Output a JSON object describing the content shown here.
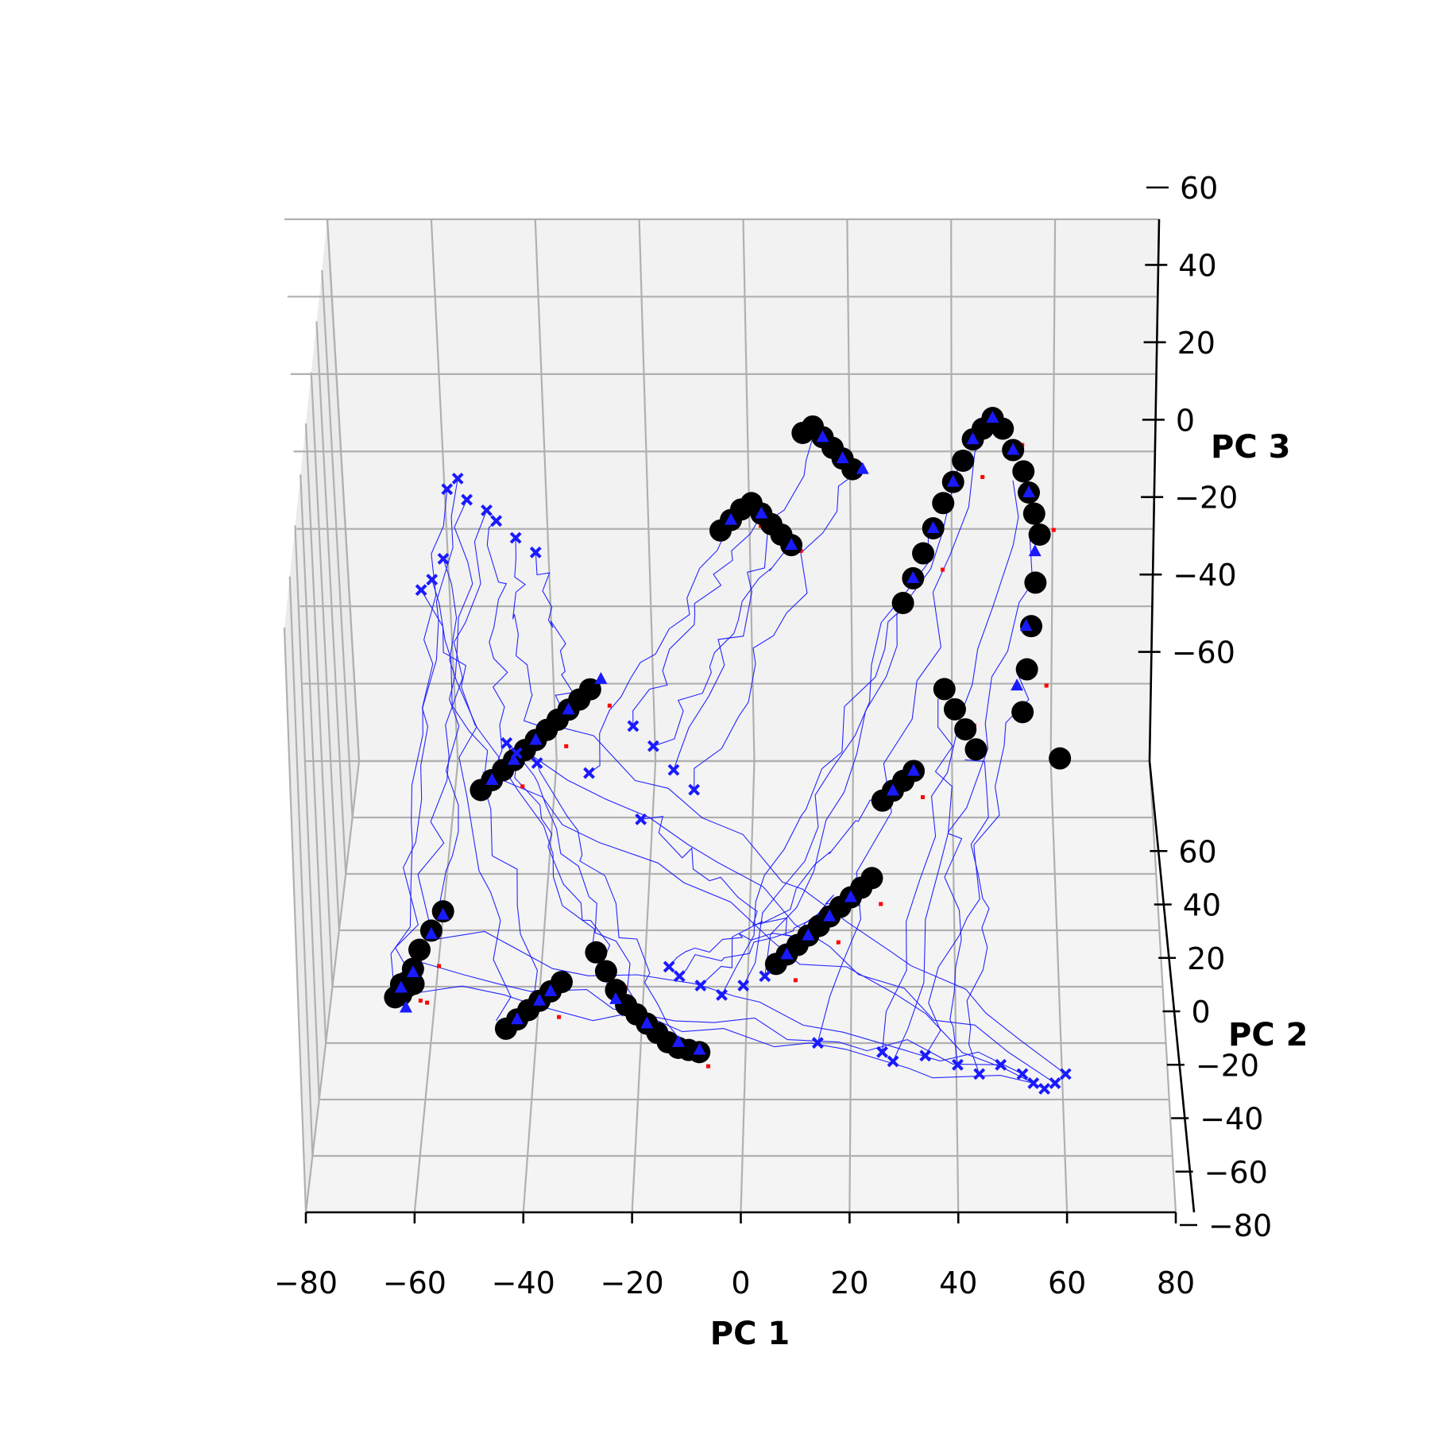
{
  "chart_data": {
    "type": "scatter",
    "projection": "3d",
    "title": "",
    "xlabel": "PC 1",
    "ylabel": "PC 2",
    "zlabel": "PC 3",
    "xlim": [
      -80,
      80
    ],
    "ylim": [
      -80,
      80
    ],
    "zlim": [
      -80,
      60
    ],
    "x_ticks": [
      "−80",
      "−60",
      "−40",
      "−20",
      "0",
      "20",
      "40",
      "60",
      "80"
    ],
    "y_ticks": [
      "−80",
      "−60",
      "−40",
      "−20",
      "0",
      "20",
      "40",
      "60"
    ],
    "z_ticks": [
      "−60",
      "−40",
      "−20",
      "0",
      "20",
      "40",
      "60"
    ],
    "grid": true,
    "colors": {
      "trajectory": "#1a1aff",
      "cross_marker": "#1a1aff",
      "triangle_marker": "#1a1aff",
      "circle_marker": "#000000",
      "dotted_segment": "#ff0000",
      "pane": "#f2f2f2",
      "gridline": "#b0b0b0"
    },
    "series": [
      {
        "marker": "circle",
        "color": "#000000",
        "points": [
          [
            -63,
            -70,
            -20
          ],
          [
            -62,
            -68,
            -22
          ],
          [
            -61,
            -66,
            -18
          ],
          [
            -64,
            -72,
            -24
          ],
          [
            -60,
            -62,
            -14
          ],
          [
            -58,
            -58,
            -10
          ],
          [
            -56,
            -54,
            -6
          ],
          [
            -63,
            -70,
            -26
          ],
          [
            -62,
            -66,
            -28
          ],
          [
            -61,
            -64,
            -30
          ],
          [
            -50,
            -30,
            20
          ],
          [
            -48,
            -28,
            22
          ],
          [
            -46,
            -26,
            24
          ],
          [
            -44,
            -24,
            26
          ],
          [
            -42,
            -22,
            28
          ],
          [
            -40,
            -20,
            30
          ],
          [
            -38,
            -18,
            32
          ],
          [
            -36,
            -16,
            34
          ],
          [
            -34,
            -14,
            36
          ],
          [
            -32,
            -12,
            38
          ],
          [
            -30,
            -10,
            40
          ],
          [
            -44,
            -60,
            -62
          ],
          [
            -42,
            -58,
            -60
          ],
          [
            -40,
            -56,
            -58
          ],
          [
            -38,
            -54,
            -56
          ],
          [
            -36,
            -52,
            -54
          ],
          [
            -34,
            -50,
            -52
          ],
          [
            -28,
            -36,
            -58
          ],
          [
            -26,
            -40,
            -62
          ],
          [
            -24,
            -44,
            -66
          ],
          [
            -22,
            -48,
            -68
          ],
          [
            -20,
            -50,
            -70
          ],
          [
            -18,
            -52,
            -72
          ],
          [
            -16,
            -54,
            -74
          ],
          [
            -14,
            -56,
            -76
          ],
          [
            -12,
            -58,
            -76
          ],
          [
            -10,
            -60,
            -74
          ],
          [
            -8,
            -62,
            -72
          ],
          [
            -6,
            40,
            40
          ],
          [
            -4,
            42,
            42
          ],
          [
            -2,
            44,
            44
          ],
          [
            0,
            46,
            44
          ],
          [
            2,
            44,
            42
          ],
          [
            4,
            42,
            40
          ],
          [
            6,
            40,
            38
          ],
          [
            8,
            38,
            36
          ],
          [
            10,
            60,
            56
          ],
          [
            12,
            62,
            56
          ],
          [
            14,
            60,
            54
          ],
          [
            16,
            58,
            52
          ],
          [
            18,
            56,
            50
          ],
          [
            20,
            54,
            48
          ],
          [
            6,
            -40,
            -58
          ],
          [
            8,
            -38,
            -56
          ],
          [
            10,
            -36,
            -54
          ],
          [
            12,
            -34,
            -52
          ],
          [
            14,
            -32,
            -50
          ],
          [
            16,
            -30,
            -48
          ],
          [
            18,
            -28,
            -46
          ],
          [
            20,
            -26,
            -44
          ],
          [
            22,
            -24,
            -42
          ],
          [
            24,
            -22,
            -40
          ],
          [
            26,
            -10,
            -18
          ],
          [
            28,
            -8,
            -16
          ],
          [
            30,
            -6,
            -14
          ],
          [
            32,
            -4,
            -12
          ],
          [
            30,
            30,
            20
          ],
          [
            32,
            34,
            26
          ],
          [
            34,
            38,
            32
          ],
          [
            36,
            42,
            38
          ],
          [
            38,
            46,
            44
          ],
          [
            40,
            50,
            48
          ],
          [
            42,
            54,
            52
          ],
          [
            44,
            58,
            56
          ],
          [
            46,
            60,
            58
          ],
          [
            48,
            62,
            60
          ],
          [
            50,
            60,
            58
          ],
          [
            52,
            56,
            54
          ],
          [
            54,
            52,
            50
          ],
          [
            55,
            48,
            46
          ],
          [
            56,
            44,
            42
          ],
          [
            57,
            40,
            38
          ],
          [
            56,
            30,
            30
          ],
          [
            55,
            20,
            24
          ],
          [
            54,
            10,
            18
          ],
          [
            53,
            0,
            12
          ],
          [
            60,
            -10,
            4
          ],
          [
            38,
            10,
            8
          ],
          [
            40,
            6,
            4
          ],
          [
            42,
            2,
            0
          ],
          [
            44,
            -2,
            -4
          ]
        ]
      },
      {
        "marker": "triangle",
        "color": "#1a1aff",
        "points": [
          [
            -63,
            -70,
            -22
          ],
          [
            -61,
            -66,
            -20
          ],
          [
            -58,
            -58,
            -12
          ],
          [
            -56,
            -54,
            -8
          ],
          [
            -62,
            -72,
            -30
          ],
          [
            -48,
            -28,
            22
          ],
          [
            -44,
            -24,
            26
          ],
          [
            -40,
            -20,
            30
          ],
          [
            -34,
            -14,
            36
          ],
          [
            -28,
            -8,
            42
          ],
          [
            -42,
            -58,
            -60
          ],
          [
            -38,
            -54,
            -56
          ],
          [
            -36,
            -52,
            -54
          ],
          [
            -24,
            -46,
            -68
          ],
          [
            -18,
            -52,
            -72
          ],
          [
            -12,
            -56,
            -76
          ],
          [
            -8,
            -60,
            -74
          ],
          [
            -4,
            42,
            42
          ],
          [
            2,
            44,
            42
          ],
          [
            8,
            38,
            36
          ],
          [
            14,
            60,
            54
          ],
          [
            18,
            56,
            50
          ],
          [
            22,
            54,
            48
          ],
          [
            8,
            -38,
            -56
          ],
          [
            12,
            -34,
            -52
          ],
          [
            16,
            -30,
            -48
          ],
          [
            20,
            -26,
            -44
          ],
          [
            28,
            -8,
            -16
          ],
          [
            32,
            -4,
            -12
          ],
          [
            32,
            34,
            26
          ],
          [
            36,
            42,
            38
          ],
          [
            40,
            50,
            48
          ],
          [
            44,
            58,
            56
          ],
          [
            48,
            62,
            60
          ],
          [
            52,
            56,
            54
          ],
          [
            55,
            48,
            46
          ],
          [
            56,
            36,
            36
          ],
          [
            54,
            20,
            24
          ],
          [
            52,
            6,
            16
          ]
        ]
      },
      {
        "marker": "x",
        "color": "#1a1aff",
        "points": [
          [
            -60,
            40,
            60
          ],
          [
            -58,
            42,
            62
          ],
          [
            -56,
            38,
            58
          ],
          [
            -52,
            36,
            56
          ],
          [
            -50,
            34,
            54
          ],
          [
            -46,
            30,
            52
          ],
          [
            -42,
            28,
            48
          ],
          [
            -60,
            26,
            48
          ],
          [
            -62,
            22,
            44
          ],
          [
            -64,
            20,
            42
          ],
          [
            -46,
            -10,
            12
          ],
          [
            -44,
            -12,
            10
          ],
          [
            -40,
            -14,
            8
          ],
          [
            -30,
            -16,
            6
          ],
          [
            -22,
            -2,
            8
          ],
          [
            -18,
            -6,
            4
          ],
          [
            -14,
            -10,
            -2
          ],
          [
            -10,
            -14,
            -6
          ],
          [
            -20,
            -20,
            -12
          ],
          [
            -14,
            -46,
            -50
          ],
          [
            -12,
            -48,
            -52
          ],
          [
            -8,
            -50,
            -54
          ],
          [
            -4,
            -52,
            -56
          ],
          [
            0,
            -50,
            -54
          ],
          [
            4,
            -48,
            -52
          ],
          [
            14,
            -60,
            -70
          ],
          [
            26,
            -62,
            -72
          ],
          [
            28,
            -64,
            -74
          ],
          [
            34,
            -62,
            -74
          ],
          [
            40,
            -64,
            -76
          ],
          [
            44,
            -66,
            -78
          ],
          [
            48,
            -64,
            -76
          ],
          [
            52,
            -66,
            -78
          ],
          [
            54,
            -68,
            -80
          ],
          [
            56,
            -70,
            -80
          ],
          [
            58,
            -68,
            -80
          ],
          [
            60,
            -66,
            -78
          ]
        ]
      }
    ]
  }
}
